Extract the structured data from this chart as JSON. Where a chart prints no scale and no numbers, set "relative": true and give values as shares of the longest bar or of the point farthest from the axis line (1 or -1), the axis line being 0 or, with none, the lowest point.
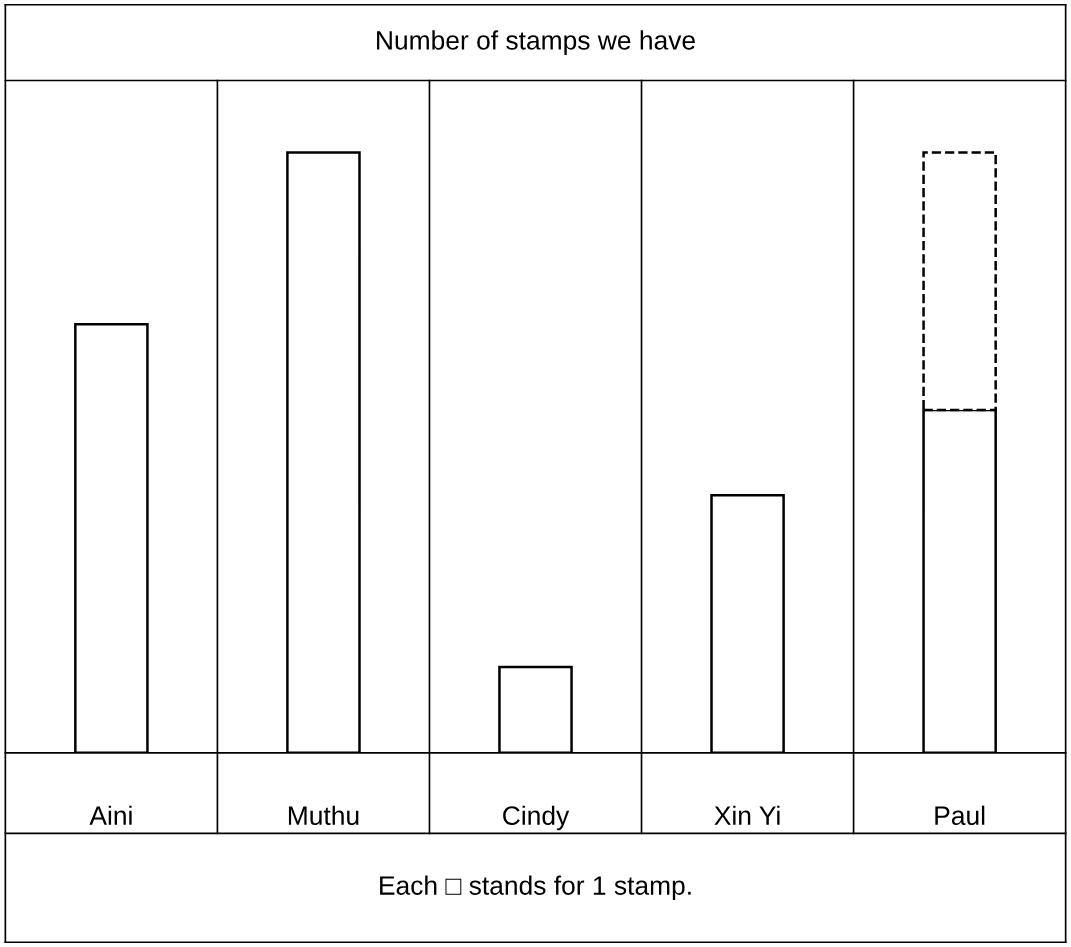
{
  "chart_data": {
    "type": "bar",
    "title": "Number of stamps we have",
    "relative": true,
    "stacked": true,
    "categories": [
      "Aini",
      "Muthu",
      "Cindy",
      "Xin Yi",
      "Paul"
    ],
    "series": [
      {
        "color": "#ffffff",
        "line_style": "solid",
        "values": [
          0.714,
          1,
          0.143,
          0.429,
          0.571
        ]
      },
      {
        "color": "#ffffff",
        "line_style": "dashed",
        "values": [
          null,
          null,
          null,
          null,
          0.429
        ]
      }
    ],
    "annotations": [
      "Each □ stands for 1 stamp."
    ],
    "grid": false,
    "legend": false
  }
}
